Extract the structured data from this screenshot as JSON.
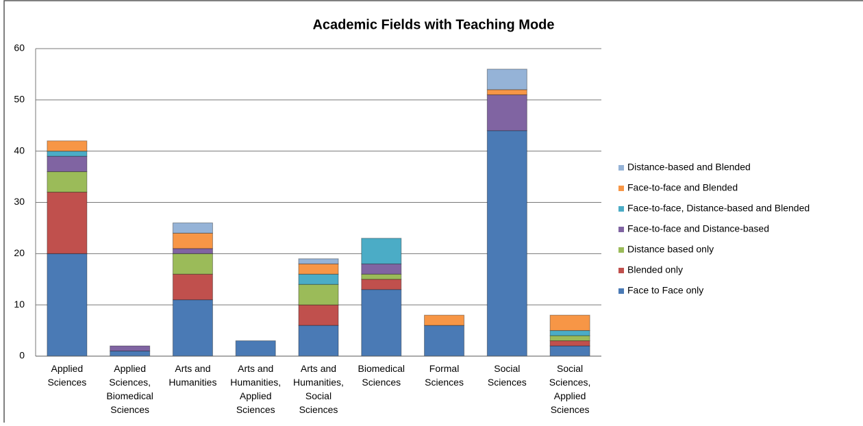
{
  "chart_data": {
    "type": "stacked_bar",
    "title": "Academic Fields with Teaching Mode",
    "categories": [
      "Applied Sciences",
      "Applied Sciences, Biomedical Sciences",
      "Arts and Humanities",
      "Arts and Humanities, Applied Sciences",
      "Arts and Humanities, Social Sciences",
      "Biomedical Sciences",
      "Formal Sciences",
      "Social Sciences",
      "Social Sciences, Applied Sciences"
    ],
    "series": [
      {
        "name": "Face to Face only",
        "color": "#4a7ab5",
        "values": [
          20,
          1,
          11,
          3,
          6,
          13,
          6,
          44,
          2
        ]
      },
      {
        "name": "Blended only",
        "color": "#c0504d",
        "values": [
          12,
          0,
          5,
          0,
          4,
          2,
          0,
          0,
          1
        ]
      },
      {
        "name": "Distance  based only",
        "color": "#9bbb59",
        "values": [
          4,
          0,
          4,
          0,
          4,
          1,
          0,
          0,
          1
        ]
      },
      {
        "name": "Face-to-face and Distance-based",
        "color": "#8064a2",
        "values": [
          3,
          1,
          1,
          0,
          0,
          2,
          0,
          7,
          0
        ]
      },
      {
        "name": "Face-to-face, Distance-based and Blended",
        "color": "#4bacc6",
        "values": [
          1,
          0,
          0,
          0,
          2,
          5,
          0,
          0,
          1
        ]
      },
      {
        "name": "Face-to-face and Blended",
        "color": "#f79646",
        "values": [
          2,
          0,
          3,
          0,
          2,
          0,
          2,
          1,
          3
        ]
      },
      {
        "name": "Distance-based and Blended",
        "color": "#95b3d7",
        "values": [
          0,
          0,
          2,
          0,
          1,
          0,
          0,
          4,
          0
        ]
      }
    ],
    "ylim": [
      0,
      60
    ],
    "yticks": [
      0,
      10,
      20,
      30,
      40,
      50,
      60
    ],
    "grid": true,
    "legend": "right"
  }
}
